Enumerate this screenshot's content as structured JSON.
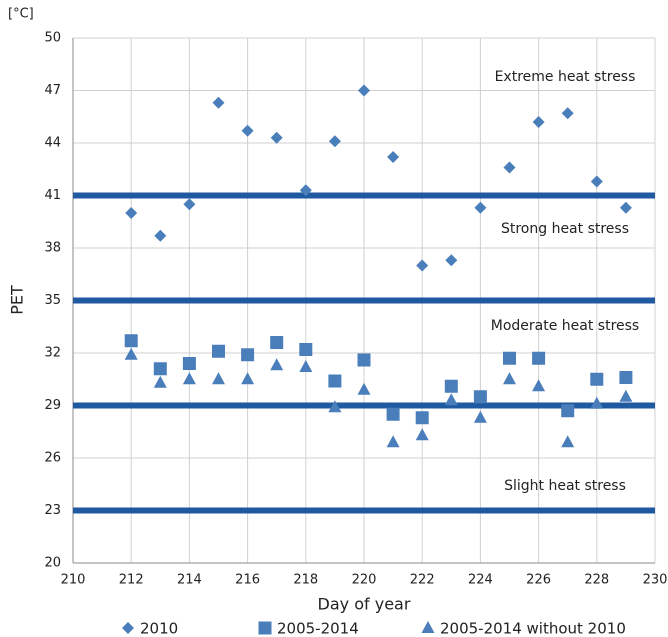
{
  "chart_data": {
    "type": "scatter",
    "y_unit": "[°C]",
    "y_label": "PET",
    "x_label": "Day of year",
    "x": [
      212,
      213,
      214,
      215,
      216,
      217,
      218,
      219,
      220,
      221,
      222,
      223,
      224,
      225,
      226,
      227,
      228,
      229
    ],
    "series": [
      {
        "name": "2010",
        "color": "#4a7ebb",
        "marker": "diamond",
        "values": [
          40.0,
          38.7,
          40.5,
          46.3,
          44.7,
          44.3,
          41.3,
          44.1,
          47.0,
          43.2,
          37.0,
          37.3,
          40.3,
          42.6,
          45.2,
          45.7,
          41.8,
          40.3
        ]
      },
      {
        "name": "2005-2014",
        "color": "#4a7ebb",
        "marker": "square",
        "values": [
          32.7,
          31.1,
          31.4,
          32.1,
          31.9,
          32.6,
          32.2,
          30.4,
          31.6,
          28.5,
          28.3,
          30.1,
          29.5,
          31.7,
          31.7,
          28.7,
          30.5,
          30.6
        ]
      },
      {
        "name": "2005-2014 without 2010",
        "color": "#4a7ebb",
        "marker": "triangle",
        "values": [
          31.9,
          30.3,
          30.5,
          30.5,
          30.5,
          31.3,
          31.2,
          28.9,
          29.9,
          26.9,
          27.3,
          29.3,
          28.3,
          30.5,
          30.1,
          26.9,
          29.1,
          29.5
        ]
      }
    ],
    "reference_lines": [
      23,
      29,
      35,
      41
    ],
    "reference_color": "#1f5aa0",
    "annotations": [
      "Extreme heat stress",
      "Strong heat stress",
      "Moderate heat stress",
      "Slight heat stress"
    ],
    "xlim": [
      210,
      230
    ],
    "xticks": [
      210,
      212,
      214,
      216,
      218,
      220,
      222,
      224,
      226,
      228,
      230
    ],
    "ylim": [
      20,
      50
    ],
    "yticks": [
      20,
      23,
      26,
      29,
      32,
      35,
      38,
      41,
      44,
      47,
      50
    ],
    "grid": true
  }
}
